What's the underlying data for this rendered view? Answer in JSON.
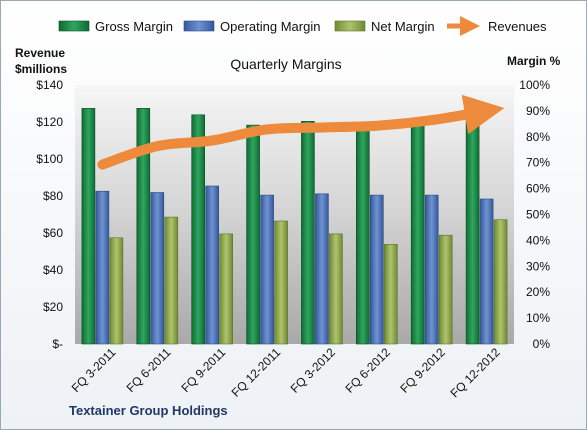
{
  "company": "Textainer Group Holdings",
  "colors": {
    "gross": "#1e8a4a",
    "operating": "#4f75b8",
    "net": "#93ad4f",
    "revenue": "#ee8a3c"
  },
  "chart_data": {
    "type": "bar",
    "title": "Quarterly Margins",
    "ylabel_left": [
      "Revenue",
      "$millions"
    ],
    "ylabel_right": "Margin %",
    "categories": [
      "FQ 3-2011",
      "FQ 6-2011",
      "FQ 9-2011",
      "FQ 12-2011",
      "FQ 3-2012",
      "FQ 6-2012",
      "FQ 9-2012",
      "FQ 12-2012"
    ],
    "left_axis": {
      "min": 0,
      "max": 140,
      "ticks": [
        "$-",
        "$20",
        "$40",
        "$60",
        "$80",
        "$100",
        "$120",
        "$140"
      ]
    },
    "right_axis": {
      "min": 0,
      "max": 100,
      "ticks": [
        "0%",
        "10%",
        "20%",
        "30%",
        "40%",
        "50%",
        "60%",
        "70%",
        "80%",
        "90%",
        "100%"
      ]
    },
    "series": [
      {
        "name": "Gross Margin",
        "axis": "right",
        "type": "bar",
        "values": [
          91,
          91,
          88.5,
          84.5,
          86,
          85.5,
          87,
          90
        ]
      },
      {
        "name": "Operating Margin",
        "axis": "right",
        "type": "bar",
        "values": [
          59,
          58.5,
          61,
          57.5,
          58,
          57.5,
          57.5,
          56
        ]
      },
      {
        "name": "Net Margin",
        "axis": "right",
        "type": "bar",
        "values": [
          41,
          49,
          42.5,
          47.5,
          42.5,
          38.5,
          42,
          48
        ]
      },
      {
        "name": "Revenues",
        "axis": "left",
        "type": "line",
        "values": [
          97,
          107,
          110,
          116,
          117,
          118,
          121,
          126
        ]
      }
    ],
    "legend_position": "top",
    "grid": false
  }
}
